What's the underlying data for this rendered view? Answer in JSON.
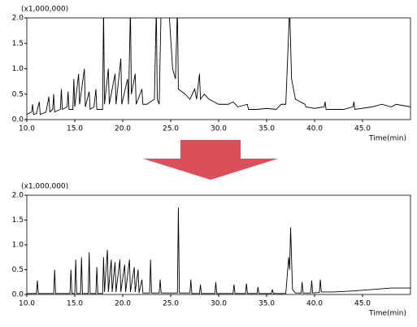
{
  "chart_data": [
    {
      "type": "line",
      "ylabel": "(x1,000,000)",
      "xlabel": "Time(min)",
      "xlim": [
        10,
        50
      ],
      "ylim": [
        0,
        2
      ],
      "xticks": [
        {
          "value": 10,
          "label": "10.0"
        },
        {
          "value": 15,
          "label": "15.0"
        },
        {
          "value": 20,
          "label": "20.0"
        },
        {
          "value": 25,
          "label": "25.0"
        },
        {
          "value": 30,
          "label": "30.0"
        },
        {
          "value": 35,
          "label": "35.0"
        },
        {
          "value": 40,
          "label": "40.0"
        },
        {
          "value": 45,
          "label": "45.0"
        }
      ],
      "yticks": [
        {
          "value": 0,
          "label": "0.0"
        },
        {
          "value": 0.5,
          "label": "0.5"
        },
        {
          "value": 1,
          "label": "1.0"
        },
        {
          "value": 1.5,
          "label": "1.5"
        },
        {
          "value": 2,
          "label": "2.0"
        }
      ],
      "x": [
        10.0,
        10.5,
        10.6,
        10.7,
        11.0,
        11.3,
        11.4,
        12.0,
        12.3,
        12.4,
        12.7,
        12.8,
        12.9,
        13.5,
        13.6,
        13.7,
        14.2,
        14.3,
        14.4,
        14.8,
        14.9,
        15.0,
        15.4,
        15.5,
        16.0,
        16.1,
        16.5,
        16.6,
        17.0,
        17.2,
        17.3,
        17.9,
        18.0,
        18.1,
        18.5,
        18.6,
        19.2,
        19.3,
        19.8,
        19.9,
        20.5,
        20.6,
        20.8,
        20.9,
        21.3,
        21.4,
        22.0,
        22.1,
        22.5,
        23.3,
        23.5,
        23.6,
        23.8,
        24.0,
        24.8,
        25.2,
        25.5,
        25.7,
        25.8,
        26.5,
        27.0,
        27.5,
        27.7,
        28.0,
        28.1,
        28.5,
        29.0,
        29.5,
        30.0,
        31.0,
        31.5,
        32.0,
        33.0,
        33.1,
        34.0,
        35.0,
        36.0,
        36.5,
        37.0,
        37.4,
        37.6,
        38.0,
        39.0,
        39.1,
        40.0,
        41.0,
        41.1,
        41.2,
        43.0,
        44.0,
        44.1,
        44.2,
        46.0,
        47.0,
        48.0,
        48.5,
        50.0
      ],
      "series": [
        {
          "color": "#000000",
          "values": [
            0.1,
            0.15,
            0.3,
            0.1,
            0.12,
            0.35,
            0.1,
            0.15,
            0.45,
            0.15,
            0.2,
            0.5,
            0.15,
            0.2,
            0.6,
            0.2,
            0.25,
            0.55,
            0.2,
            0.2,
            0.8,
            0.25,
            0.9,
            0.3,
            1.0,
            0.25,
            0.55,
            0.2,
            0.25,
            0.6,
            0.2,
            0.2,
            2.2,
            0.3,
            1.0,
            0.3,
            0.9,
            0.3,
            1.2,
            0.3,
            0.8,
            0.3,
            2.2,
            0.5,
            0.9,
            0.3,
            0.6,
            0.3,
            0.3,
            0.4,
            2.2,
            0.4,
            0.3,
            2.2,
            2.2,
            1.0,
            0.8,
            2.2,
            0.6,
            0.5,
            0.4,
            0.6,
            0.4,
            0.9,
            0.4,
            0.5,
            0.4,
            0.35,
            0.3,
            0.3,
            0.35,
            0.25,
            0.3,
            0.2,
            0.2,
            0.22,
            0.2,
            0.3,
            0.3,
            2.2,
            0.8,
            0.4,
            0.3,
            0.25,
            0.22,
            0.25,
            0.35,
            0.2,
            0.2,
            0.25,
            0.35,
            0.2,
            0.25,
            0.3,
            0.25,
            0.3,
            0.25
          ]
        }
      ]
    },
    {
      "type": "line",
      "ylabel": "(x1,000,000)",
      "xlabel": "Time(min)",
      "xlim": [
        10,
        50
      ],
      "ylim": [
        0,
        2
      ],
      "xticks": [
        {
          "value": 10,
          "label": "10.0"
        },
        {
          "value": 15,
          "label": "15.0"
        },
        {
          "value": 20,
          "label": "20.0"
        },
        {
          "value": 25,
          "label": "25.0"
        },
        {
          "value": 30,
          "label": "30.0"
        },
        {
          "value": 35,
          "label": "35.0"
        },
        {
          "value": 40,
          "label": "40.0"
        },
        {
          "value": 45,
          "label": "45.0"
        }
      ],
      "yticks": [
        {
          "value": 0,
          "label": "0.0"
        },
        {
          "value": 0.5,
          "label": "0.5"
        },
        {
          "value": 1,
          "label": "1.0"
        },
        {
          "value": 1.5,
          "label": "1.5"
        },
        {
          "value": 2,
          "label": "2.0"
        }
      ],
      "x": [
        10.0,
        11.0,
        11.1,
        11.2,
        12.8,
        12.9,
        13.0,
        14.5,
        14.6,
        14.7,
        15.0,
        15.1,
        15.2,
        15.6,
        15.7,
        15.8,
        16.4,
        16.5,
        16.6,
        17.2,
        17.3,
        17.4,
        17.9,
        18.0,
        18.1,
        18.4,
        18.5,
        18.8,
        18.9,
        19.2,
        19.3,
        19.7,
        19.8,
        20.2,
        20.3,
        20.7,
        20.8,
        21.2,
        21.3,
        21.6,
        21.7,
        22.0,
        22.1,
        22.8,
        22.9,
        23.0,
        23.8,
        23.9,
        24.0,
        25.7,
        25.8,
        25.9,
        27.0,
        27.1,
        27.2,
        28.0,
        28.1,
        28.2,
        29.6,
        29.7,
        29.8,
        31.5,
        31.6,
        31.7,
        32.8,
        32.9,
        33.0,
        34.0,
        34.1,
        34.2,
        35.5,
        35.6,
        35.7,
        37.0,
        37.3,
        37.4,
        37.5,
        37.7,
        38.0,
        38.6,
        38.7,
        38.8,
        39.6,
        39.7,
        39.8,
        40.5,
        40.6,
        40.7,
        42.0,
        44.0,
        46.0,
        48.0,
        50.0
      ],
      "series": [
        {
          "color": "#000000",
          "values": [
            0.02,
            0.02,
            0.28,
            0.02,
            0.02,
            0.5,
            0.02,
            0.02,
            0.5,
            0.02,
            0.02,
            0.7,
            0.02,
            0.02,
            0.75,
            0.02,
            0.02,
            0.85,
            0.02,
            0.02,
            0.55,
            0.02,
            0.02,
            0.75,
            0.05,
            0.9,
            0.05,
            0.7,
            0.05,
            0.65,
            0.05,
            0.7,
            0.05,
            0.6,
            0.05,
            0.7,
            0.05,
            0.55,
            0.05,
            0.5,
            0.03,
            0.3,
            0.03,
            0.03,
            0.7,
            0.03,
            0.03,
            0.3,
            0.03,
            0.03,
            1.75,
            0.03,
            0.03,
            0.3,
            0.02,
            0.02,
            0.2,
            0.02,
            0.02,
            0.25,
            0.02,
            0.02,
            0.2,
            0.02,
            0.02,
            0.22,
            0.02,
            0.02,
            0.15,
            0.02,
            0.02,
            0.1,
            0.02,
            0.02,
            0.75,
            0.5,
            1.35,
            0.1,
            0.03,
            0.03,
            0.25,
            0.03,
            0.03,
            0.28,
            0.03,
            0.04,
            0.3,
            0.05,
            0.05,
            0.07,
            0.1,
            0.13,
            0.13
          ]
        }
      ]
    }
  ]
}
